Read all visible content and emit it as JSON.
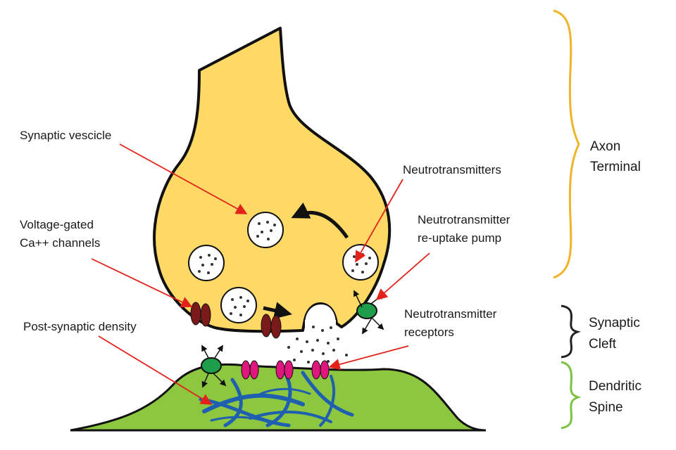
{
  "labels": {
    "synaptic_vesicle": "Synaptic vescicle",
    "voltage_gated_1": "Voltage-gated",
    "voltage_gated_2": "Ca++ channels",
    "post_synaptic_density": "Post-synaptic density",
    "neurotransmitters": "Neutrotransmitters",
    "reuptake_1": "Neutrotransmitter",
    "reuptake_2": "re-uptake pump",
    "receptors_1": "Neutrotransmitter",
    "receptors_2": "receptors"
  },
  "regions": {
    "axon_1": "Axon",
    "axon_2": "Terminal",
    "cleft_1": "Synaptic",
    "cleft_2": "Cleft",
    "spine_1": "Dendritic",
    "spine_2": "Spine"
  },
  "colors": {
    "axon_fill": "#ffd966",
    "spine_fill": "#8dc63f",
    "outline": "#111111",
    "vesicle_fill": "#ffffff",
    "channel": "#7a1a1a",
    "receptor": "#e0157d",
    "pump": "#1e9e4a",
    "cytoskeleton": "#1f5fb0",
    "pointer_arrow": "#e3221b",
    "brace_axon": "#f0b429",
    "brace_cleft": "#222222",
    "brace_spine": "#7cc242"
  }
}
